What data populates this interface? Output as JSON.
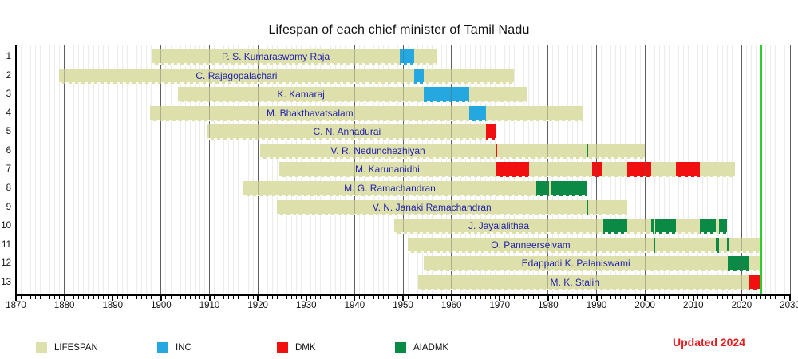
{
  "title": "Lifespan of each chief minister of Tamil Nadu",
  "updated_note": "Updated 2024",
  "colors": {
    "lifespan": "#dde0ab",
    "inc": "#25a8e0",
    "dmk": "#f01010",
    "aiadmk": "#0b8a46",
    "now_line": "#2ecc2e",
    "name_text": "#2222aa",
    "note_text": "#e81c1c",
    "axis": "#000000",
    "gridline_decade": "#5f5f5f",
    "gridline_year": "#ececec"
  },
  "legend": [
    {
      "label": "LIFESPAN",
      "color_key": "lifespan"
    },
    {
      "label": "INC",
      "color_key": "inc"
    },
    {
      "label": "DMK",
      "color_key": "dmk"
    },
    {
      "label": "AIADMK",
      "color_key": "aiadmk"
    }
  ],
  "chart_data": {
    "type": "bar",
    "subtype": "gantt-lifespan-timeline",
    "title": "Lifespan of each chief minister of Tamil Nadu",
    "x_axis": {
      "min": 1870,
      "max": 2030,
      "tick_interval": 10,
      "ticks": [
        1870,
        1880,
        1890,
        1900,
        1910,
        1920,
        1930,
        1940,
        1950,
        1960,
        1970,
        1980,
        1990,
        2000,
        2010,
        2020,
        2030
      ]
    },
    "y_axis_row_numbers": [
      1,
      2,
      3,
      4,
      5,
      6,
      7,
      8,
      9,
      10,
      11,
      12,
      13
    ],
    "now_marker": 2024.0,
    "grid": "yearly minor, decade major",
    "legend_position": "bottom",
    "rows": [
      {
        "index": 1,
        "name": "P. S. Kumaraswamy Raja",
        "lifespan_from": 1898.0,
        "lifespan_to": 1957.04,
        "terms": [
          {
            "party": "INC",
            "from": 1949.4,
            "to": 1952.27
          }
        ]
      },
      {
        "index": 2,
        "name": "C. Rajagopalachari",
        "lifespan_from": 1878.92,
        "lifespan_to": 1972.98,
        "terms": [
          {
            "party": "INC",
            "from": 1952.27,
            "to": 1954.28
          }
        ]
      },
      {
        "index": 3,
        "name": "K. Kamaraj",
        "lifespan_from": 1903.54,
        "lifespan_to": 1975.76,
        "terms": [
          {
            "party": "INC",
            "from": 1954.28,
            "to": 1963.75
          }
        ]
      },
      {
        "index": 4,
        "name": "M. Bhakthavatsalam",
        "lifespan_from": 1897.75,
        "lifespan_to": 1987.1,
        "terms": [
          {
            "party": "INC",
            "from": 1963.75,
            "to": 1967.18
          }
        ]
      },
      {
        "index": 5,
        "name": "C. N. Annadurai",
        "lifespan_from": 1909.67,
        "lifespan_to": 1969.09,
        "terms": [
          {
            "party": "DMK",
            "from": 1967.18,
            "to": 1969.09
          }
        ]
      },
      {
        "index": 6,
        "name": "V. R. Nedunchezhiyan",
        "lifespan_from": 1920.54,
        "lifespan_to": 2000.05,
        "terms": [
          {
            "party": "DMK",
            "from": 1969.09,
            "to": 1969.2
          },
          {
            "party": "AIADMK",
            "from": 1987.98,
            "to": 1988.05
          }
        ]
      },
      {
        "index": 7,
        "name": "M. Karunanidhi",
        "lifespan_from": 1924.42,
        "lifespan_to": 2018.6,
        "terms": [
          {
            "party": "DMK",
            "from": 1969.11,
            "to": 1976.08
          },
          {
            "party": "DMK",
            "from": 1989.07,
            "to": 1991.08
          },
          {
            "party": "DMK",
            "from": 1996.37,
            "to": 2001.37
          },
          {
            "party": "DMK",
            "from": 2006.37,
            "to": 2011.37
          }
        ]
      },
      {
        "index": 8,
        "name": "M. G. Ramachandran",
        "lifespan_from": 1917.05,
        "lifespan_to": 1987.98,
        "terms": [
          {
            "party": "AIADMK",
            "from": 1977.5,
            "to": 1980.13
          },
          {
            "party": "AIADMK",
            "from": 1980.44,
            "to": 1987.98
          }
        ]
      },
      {
        "index": 9,
        "name": "V. N. Janaki Ramachandran",
        "lifespan_from": 1923.92,
        "lifespan_to": 1996.38,
        "terms": [
          {
            "party": "AIADMK",
            "from": 1988.02,
            "to": 1988.08
          }
        ]
      },
      {
        "index": 10,
        "name": "J. Jayalalithaa",
        "lifespan_from": 1948.13,
        "lifespan_to": 2016.92,
        "terms": [
          {
            "party": "AIADMK",
            "from": 1991.48,
            "to": 1996.36
          },
          {
            "party": "AIADMK",
            "from": 2001.37,
            "to": 2001.72
          },
          {
            "party": "AIADMK",
            "from": 2002.17,
            "to": 2006.36
          },
          {
            "party": "AIADMK",
            "from": 2011.37,
            "to": 2014.74
          },
          {
            "party": "AIADMK",
            "from": 2015.39,
            "to": 2016.92
          }
        ]
      },
      {
        "index": 11,
        "name": "O. Panneerselvam",
        "lifespan_from": 1951.05,
        "lifespan_to": "now",
        "terms": [
          {
            "party": "AIADMK",
            "from": 2001.72,
            "to": 2002.16
          },
          {
            "party": "AIADMK",
            "from": 2014.74,
            "to": 2015.39
          },
          {
            "party": "AIADMK",
            "from": 2016.93,
            "to": 2017.13
          }
        ]
      },
      {
        "index": 12,
        "name": "Edappadi K. Palaniswami",
        "lifespan_from": 1954.35,
        "lifespan_to": "now",
        "terms": [
          {
            "party": "AIADMK",
            "from": 2017.13,
            "to": 2021.35
          }
        ]
      },
      {
        "index": 13,
        "name": "M. K. Stalin",
        "lifespan_from": 1953.17,
        "lifespan_to": "now",
        "label_center_year": 1985.5,
        "terms": [
          {
            "party": "DMK",
            "from": 2021.35,
            "to": "now"
          }
        ]
      }
    ]
  }
}
